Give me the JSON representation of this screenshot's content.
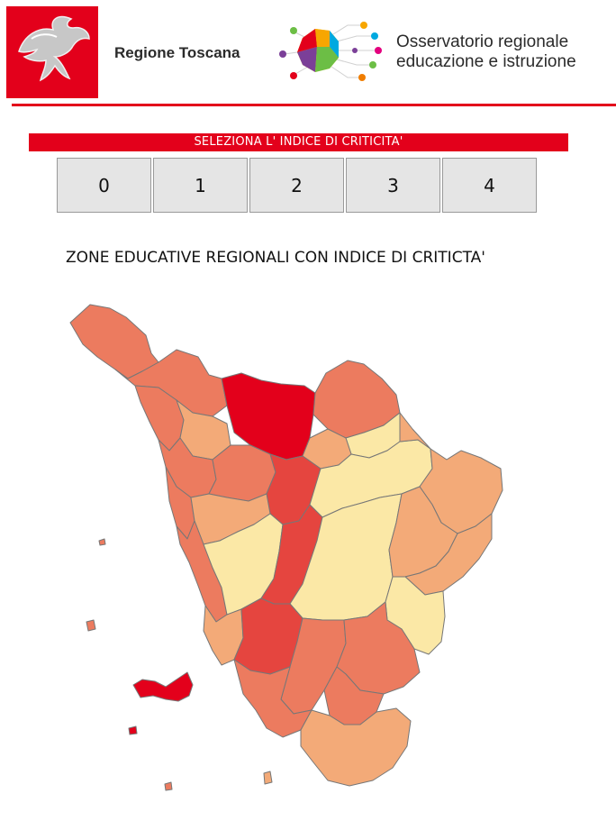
{
  "header": {
    "region_name": "Regione Toscana",
    "observatory_line1": "Osservatorio regionale",
    "observatory_line2": "educazione e istruzione",
    "brand_red": "#e3001b"
  },
  "selector": {
    "label": "SELEZIONA L' INDICE DI CRITICITA'",
    "buttons": [
      "0",
      "1",
      "2",
      "3",
      "4"
    ]
  },
  "map": {
    "title": "ZONE EDUCATIVE REGIONALI CON INDICE DI CRITICTA'",
    "legend_colors": {
      "0": "#fbe8a6",
      "1": "#f3aa78",
      "2": "#ec7b5f",
      "3": "#e5453f",
      "4": "#e3001b"
    }
  }
}
